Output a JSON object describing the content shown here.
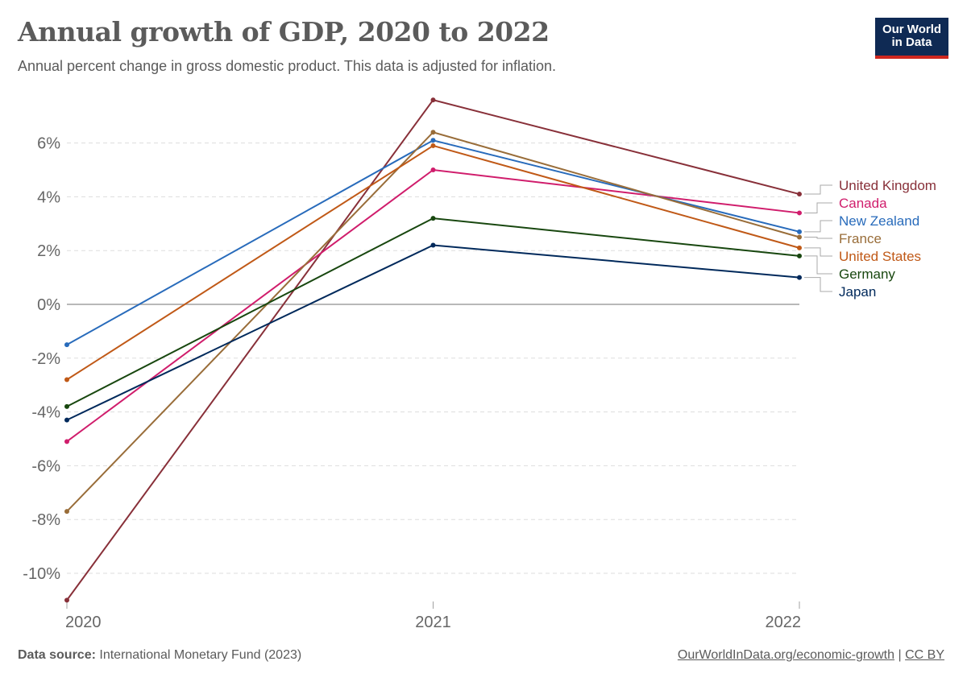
{
  "header": {
    "title": "Annual growth of GDP, 2020 to 2022",
    "subtitle": "Annual percent change in gross domestic product. This data is adjusted for inflation.",
    "logo_line1": "Our World",
    "logo_line2": "in Data"
  },
  "footer": {
    "source_label": "Data source:",
    "source_text": "International Monetary Fund (2023)",
    "link_text": "OurWorldInData.org/economic-growth",
    "separator": "|",
    "license_text": "CC BY"
  },
  "chart_data": {
    "type": "line",
    "title": "Annual growth of GDP, 2020 to 2022",
    "subtitle": "Annual percent change in gross domestic product. This data is adjusted for inflation.",
    "xlabel": "",
    "ylabel": "",
    "x": [
      "2020",
      "2021",
      "2022"
    ],
    "ylim": [
      -11,
      7.6
    ],
    "yticks": [
      -10,
      -8,
      -6,
      -4,
      -2,
      0,
      2,
      4,
      6
    ],
    "ytick_labels": [
      "-10%",
      "-8%",
      "-6%",
      "-4%",
      "-2%",
      "0%",
      "2%",
      "4%",
      "6%"
    ],
    "grid": true,
    "legend_placement": "right (line-end labels)",
    "series": [
      {
        "name": "United Kingdom",
        "color": "#883039",
        "values": [
          -11.0,
          7.6,
          4.1
        ]
      },
      {
        "name": "Canada",
        "color": "#d01d6c",
        "values": [
          -5.1,
          5.0,
          3.4
        ]
      },
      {
        "name": "New Zealand",
        "color": "#286bbb",
        "values": [
          -1.5,
          6.1,
          2.7
        ]
      },
      {
        "name": "France",
        "color": "#996d39",
        "values": [
          -7.7,
          6.4,
          2.5
        ]
      },
      {
        "name": "United States",
        "color": "#c05917",
        "values": [
          -2.8,
          5.9,
          2.1
        ]
      },
      {
        "name": "Germany",
        "color": "#18470f",
        "values": [
          -3.8,
          3.2,
          1.8
        ]
      },
      {
        "name": "Japan",
        "color": "#00295b",
        "values": [
          -4.3,
          2.2,
          1.0
        ]
      }
    ]
  }
}
